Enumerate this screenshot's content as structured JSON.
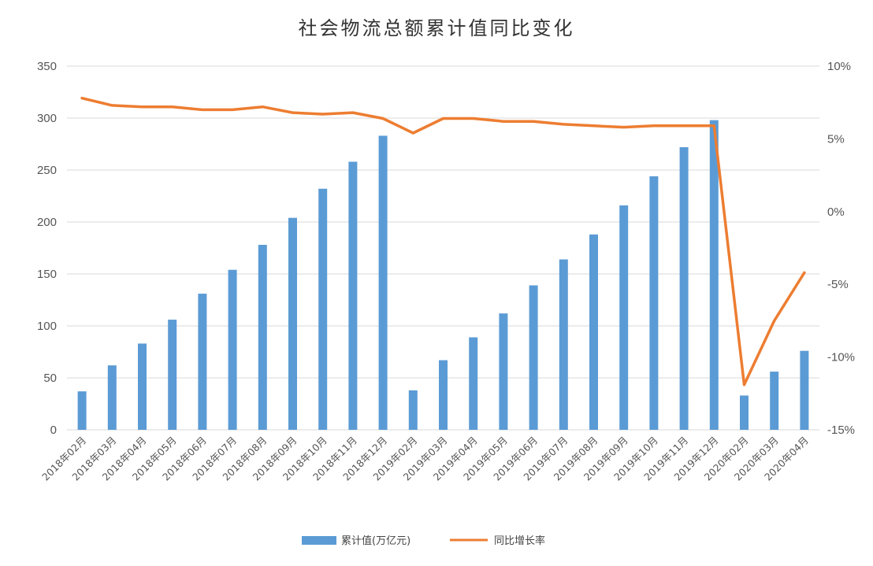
{
  "chart_data": {
    "type": "bar",
    "title": "社会物流总额累计值同比变化",
    "categories": [
      "2018年02月",
      "2018年03月",
      "2018年04月",
      "2018年05月",
      "2018年06月",
      "2018年07月",
      "2018年08月",
      "2018年09月",
      "2018年10月",
      "2018年11月",
      "2018年12月",
      "2019年02月",
      "2019年03月",
      "2019年04月",
      "2019年05月",
      "2019年06月",
      "2019年07月",
      "2019年08月",
      "2019年09月",
      "2019年10月",
      "2019年11月",
      "2019年12月",
      "2020年02月",
      "2020年03月",
      "2020年04月"
    ],
    "series": [
      {
        "name": "累计值(万亿元)",
        "type": "bar",
        "axis": "left",
        "color": "#5B9BD5",
        "values": [
          37,
          62,
          83,
          106,
          131,
          154,
          178,
          204,
          232,
          258,
          283,
          38,
          67,
          89,
          112,
          139,
          164,
          188,
          216,
          244,
          272,
          298,
          33,
          56,
          76
        ]
      },
      {
        "name": "同比增长率",
        "type": "line",
        "axis": "right",
        "color": "#ED7D31",
        "values": [
          7.8,
          7.3,
          7.2,
          7.2,
          7.0,
          7.0,
          7.2,
          6.8,
          6.7,
          6.8,
          6.4,
          5.4,
          6.4,
          6.4,
          6.2,
          6.2,
          6.0,
          5.9,
          5.8,
          5.9,
          5.9,
          5.9,
          -11.9,
          -7.5,
          -4.2
        ]
      }
    ],
    "y_left": {
      "min": 0,
      "max": 350,
      "ticks": [
        0,
        50,
        100,
        150,
        200,
        250,
        300,
        350
      ],
      "tick_labels": [
        "0",
        "50",
        "100",
        "150",
        "200",
        "250",
        "300",
        "350"
      ]
    },
    "y_right": {
      "min": -15,
      "max": 10,
      "ticks": [
        -15,
        -10,
        -5,
        0,
        5,
        10
      ],
      "tick_labels": [
        "-15%",
        "-10%",
        "-5%",
        "0%",
        "5%",
        "10%"
      ]
    },
    "grid": true,
    "legend_position": "bottom"
  }
}
